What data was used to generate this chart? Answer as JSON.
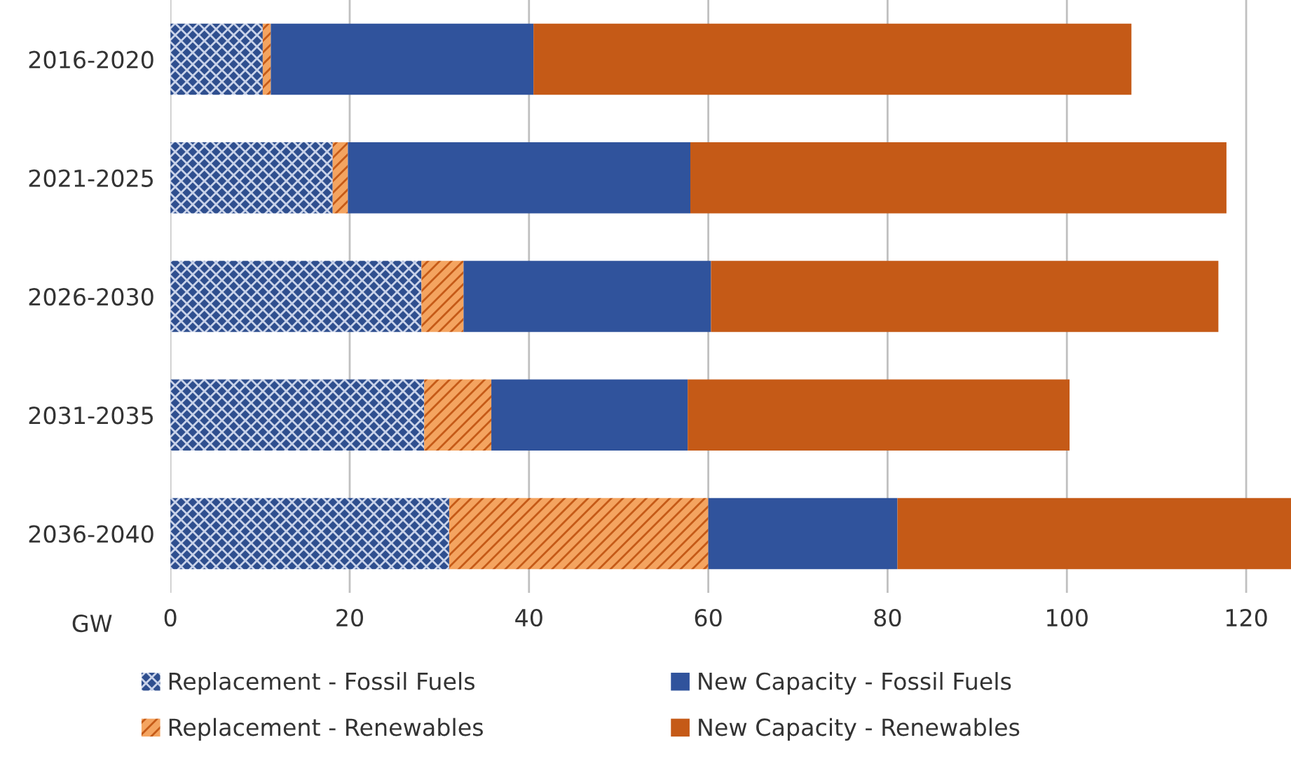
{
  "chart_data": {
    "type": "bar",
    "orientation": "horizontal",
    "stacked": true,
    "xlabel": "GW",
    "categories": [
      "2016-2020",
      "2021-2025",
      "2026-2030",
      "2031-2035",
      "2036-2040"
    ],
    "series": [
      {
        "name": "Replacement - Fossil Fuels",
        "color": "#2f4f8f",
        "values": [
          10.3,
          18.1,
          28.0,
          28.3,
          31.1
        ]
      },
      {
        "name": "Replacement - Renewables",
        "color": "#f4a460",
        "values": [
          0.9,
          1.7,
          4.7,
          7.5,
          28.9
        ]
      },
      {
        "name": "New Capacity - Fossil Fuels",
        "color": "#30539c",
        "values": [
          29.3,
          38.2,
          27.6,
          21.9,
          21.1
        ]
      },
      {
        "name": "New Capacity - Renewables",
        "color": "#c55a17",
        "values": [
          66.7,
          59.8,
          56.6,
          42.6,
          43.9
        ]
      }
    ],
    "xlim": [
      0,
      125
    ],
    "xticks": [
      0,
      20,
      40,
      60,
      80,
      100,
      120
    ],
    "grid": "x",
    "legend": "bottom"
  }
}
